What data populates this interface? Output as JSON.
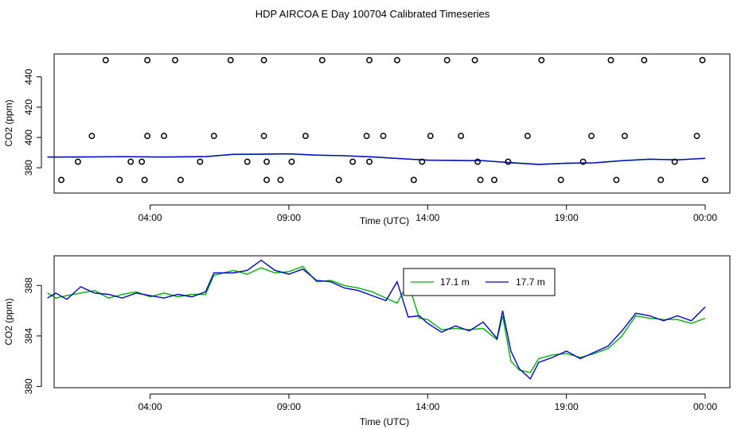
{
  "title": "HDP AIRCOA E  Day 100704  Calibrated Timeseries",
  "colors": {
    "series1": "#00b000",
    "series2": "#0000cc",
    "points": "#000000"
  },
  "chart_data": [
    {
      "type": "line",
      "xlabel": "Time (UTC)",
      "ylabel": "CO2 (ppm)",
      "x_tick_labels": [
        "04:00",
        "09:00",
        "14:00",
        "19:00",
        "00:00"
      ],
      "x_tick_hours": [
        4,
        9,
        14,
        19,
        24
      ],
      "xlim": [
        0.1,
        24.9
      ],
      "ylim": [
        367,
        454
      ],
      "y_ticks": [
        380,
        400,
        420,
        440
      ],
      "y_tick_labels": [
        "380",
        "400",
        "420",
        "440"
      ],
      "series": [
        {
          "x": [
            0.3,
            1.5,
            3,
            4.5,
            6,
            7,
            8,
            9,
            10,
            11,
            12,
            13,
            14,
            15,
            16,
            17,
            18,
            19,
            20,
            21,
            22,
            23,
            24
          ],
          "values": [
            387.2,
            387.0,
            387.4,
            387.0,
            387.3,
            388.8,
            388.9,
            389.1,
            388.3,
            388.0,
            387.1,
            386.0,
            385.0,
            384.9,
            384.6,
            383.5,
            382.3,
            383.0,
            383.2,
            384.6,
            385.6,
            385.3,
            386.2
          ]
        },
        {
          "x": [
            0.3,
            1.5,
            3,
            4.5,
            6,
            7,
            8,
            9,
            10,
            11,
            12,
            13,
            14,
            15,
            16,
            17,
            18,
            19,
            20,
            21,
            22,
            23,
            24
          ],
          "values": [
            387.0,
            387.2,
            387.3,
            387.1,
            387.4,
            388.9,
            389.0,
            389.2,
            388.4,
            387.9,
            387.2,
            386.1,
            385.1,
            384.8,
            384.7,
            383.3,
            382.2,
            383.0,
            383.3,
            384.7,
            385.7,
            385.2,
            386.3
          ]
        }
      ],
      "points": {
        "x": [
          0.8,
          1.4,
          1.9,
          2.4,
          2.9,
          3.3,
          3.7,
          3.8,
          3.9,
          3.9,
          4.5,
          4.9,
          5.1,
          5.8,
          6.3,
          6.9,
          7.5,
          8.1,
          8.1,
          8.2,
          8.2,
          8.7,
          9.1,
          9.6,
          10.2,
          10.8,
          11.3,
          11.8,
          11.9,
          11.9,
          12.4,
          12.9,
          13.5,
          13.8,
          14.1,
          14.7,
          15.2,
          15.7,
          15.8,
          15.9,
          16.4,
          16.9,
          17.6,
          18.1,
          18.8,
          19.6,
          19.9,
          20.6,
          20.8,
          21.1,
          21.8,
          22.4,
          22.9,
          23.7,
          23.9,
          24.0
        ],
        "values": [
          372,
          384,
          401,
          451,
          372,
          384,
          384,
          372,
          401,
          451,
          401,
          451,
          372,
          384,
          401,
          451,
          384,
          451,
          401,
          384,
          372,
          372,
          384,
          401,
          451,
          372,
          384,
          401,
          384,
          451,
          401,
          451,
          372,
          384,
          401,
          451,
          401,
          451,
          384,
          372,
          372,
          384,
          401,
          451,
          372,
          384,
          401,
          451,
          372,
          401,
          451,
          372,
          384,
          401,
          451,
          372
        ]
      }
    },
    {
      "type": "line",
      "xlabel": "Time (UTC)",
      "ylabel": "CO2 (ppm)",
      "x_tick_labels": [
        "04:00",
        "09:00",
        "14:00",
        "19:00",
        "00:00"
      ],
      "x_tick_hours": [
        4,
        9,
        14,
        19,
        24
      ],
      "xlim": [
        0.1,
        24.9
      ],
      "ylim": [
        379.9,
        390.1
      ],
      "y_ticks": [
        380,
        384,
        388
      ],
      "y_tick_labels": [
        "380",
        "384",
        "388"
      ],
      "legend_position": "top-center-right",
      "series": [
        {
          "name": "17.1 m",
          "x": [
            0.3,
            0.6,
            1.0,
            1.5,
            2.0,
            2.5,
            3.0,
            3.5,
            4.0,
            4.5,
            5.0,
            5.5,
            6.0,
            6.3,
            7.0,
            7.5,
            8.0,
            8.5,
            9.0,
            9.5,
            10.0,
            10.5,
            11.0,
            11.5,
            12.0,
            12.5,
            12.9,
            13.3,
            13.7,
            14.0,
            14.5,
            15.0,
            15.5,
            16.0,
            16.5,
            16.7,
            17.0,
            17.3,
            17.7,
            18.0,
            18.5,
            19.0,
            19.5,
            20.0,
            20.5,
            21.0,
            21.5,
            22.0,
            22.5,
            23.0,
            23.5,
            24.0
          ],
          "values": [
            387.4,
            387.0,
            387.2,
            387.4,
            387.6,
            387.0,
            387.3,
            387.5,
            387.1,
            387.4,
            387.1,
            387.3,
            387.3,
            388.8,
            389.2,
            388.9,
            389.4,
            389.0,
            389.1,
            389.5,
            388.3,
            388.4,
            388.0,
            387.8,
            387.5,
            387.0,
            386.6,
            388.2,
            385.4,
            385.3,
            384.5,
            384.6,
            384.5,
            384.6,
            383.7,
            385.6,
            382.0,
            381.3,
            381.1,
            382.2,
            382.5,
            382.6,
            382.3,
            382.6,
            383.0,
            384.0,
            385.6,
            385.4,
            385.3,
            385.3,
            385.0,
            385.4
          ]
        },
        {
          "name": "17.7 m",
          "x": [
            0.3,
            0.6,
            1.0,
            1.5,
            2.0,
            2.5,
            3.0,
            3.5,
            4.0,
            4.5,
            5.0,
            5.5,
            6.0,
            6.3,
            7.0,
            7.5,
            8.0,
            8.5,
            9.0,
            9.5,
            10.0,
            10.5,
            11.0,
            11.5,
            12.0,
            12.5,
            12.9,
            13.3,
            13.7,
            14.0,
            14.5,
            15.0,
            15.5,
            16.0,
            16.5,
            16.7,
            17.0,
            17.3,
            17.7,
            18.0,
            18.5,
            19.0,
            19.5,
            20.0,
            20.5,
            21.0,
            21.5,
            22.0,
            22.5,
            23.0,
            23.5,
            24.0
          ],
          "values": [
            387.0,
            387.4,
            386.9,
            387.9,
            387.4,
            387.3,
            387.0,
            387.4,
            387.2,
            387.0,
            387.3,
            387.1,
            387.5,
            389.0,
            389.0,
            389.2,
            390.0,
            389.2,
            388.9,
            389.3,
            388.4,
            388.3,
            387.8,
            387.6,
            387.2,
            386.8,
            388.3,
            385.5,
            385.6,
            385.0,
            384.3,
            384.8,
            384.4,
            385.1,
            383.8,
            386.0,
            382.8,
            381.4,
            380.6,
            381.9,
            382.3,
            382.8,
            382.2,
            382.7,
            383.2,
            384.4,
            385.8,
            385.6,
            385.2,
            385.6,
            385.2,
            386.3
          ]
        }
      ]
    }
  ]
}
